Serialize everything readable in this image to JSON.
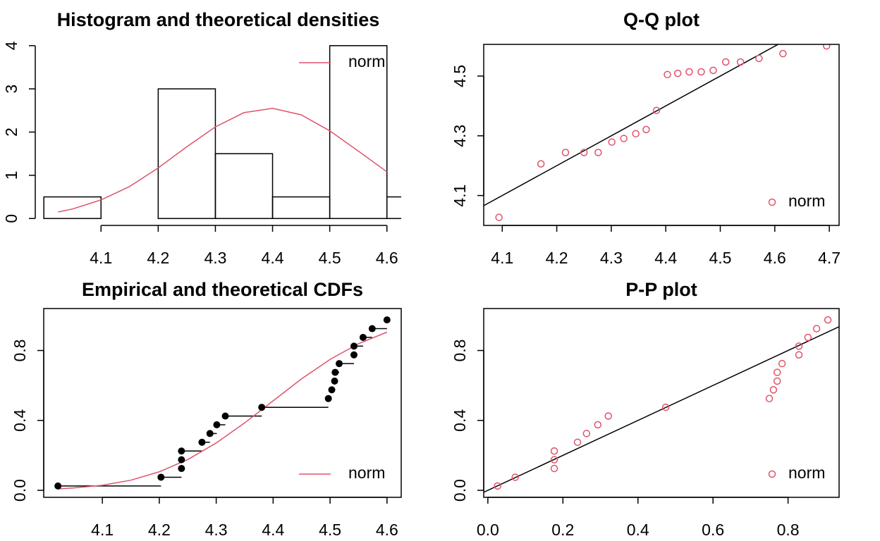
{
  "chart_data": [
    {
      "type": "histogram",
      "title": "Histogram and theoretical densities",
      "bins": [
        4.0,
        4.1,
        4.2,
        4.3,
        4.4,
        4.5,
        4.6,
        4.7
      ],
      "values": [
        0.5,
        0,
        3,
        1.5,
        0.5,
        4,
        0.5
      ],
      "color": "#000000",
      "series": [
        {
          "name": "norm",
          "color": "#DF536B",
          "x": [
            4.025,
            4.05,
            4.1,
            4.15,
            4.2,
            4.25,
            4.3,
            4.35,
            4.4,
            4.45,
            4.5,
            4.55,
            4.6
          ],
          "values": [
            0.15,
            0.22,
            0.43,
            0.74,
            1.17,
            1.66,
            2.12,
            2.45,
            2.55,
            2.4,
            2.03,
            1.56,
            1.08
          ]
        }
      ],
      "xlim": [
        3.985,
        4.625
      ],
      "ylim": [
        -0.16,
        4.16
      ],
      "xticks": [
        4.1,
        4.2,
        4.3,
        4.4,
        4.5,
        4.6
      ],
      "yticks": [
        0,
        1,
        2,
        3,
        4
      ],
      "legend": "top-right"
    },
    {
      "type": "scatter",
      "title": "Q-Q plot",
      "series": [
        {
          "name": "norm",
          "color": "#DF536B",
          "x": [
            4.094,
            4.171,
            4.216,
            4.25,
            4.276,
            4.301,
            4.323,
            4.345,
            4.364,
            4.383,
            4.403,
            4.422,
            4.443,
            4.465,
            4.487,
            4.51,
            4.537,
            4.571,
            4.615,
            4.695
          ],
          "values": [
            4.027,
            4.206,
            4.244,
            4.244,
            4.244,
            4.279,
            4.291,
            4.307,
            4.321,
            4.385,
            4.505,
            4.509,
            4.514,
            4.514,
            4.519,
            4.547,
            4.547,
            4.559,
            4.575,
            4.601
          ]
        }
      ],
      "reference_line": {
        "slope": 1,
        "intercept": 0,
        "color": "#000000"
      },
      "xlim": [
        4.066,
        4.718
      ],
      "ylim": [
        4.0,
        4.606
      ],
      "xticks": [
        4.1,
        4.2,
        4.3,
        4.4,
        4.5,
        4.6,
        4.7
      ],
      "yticks": [
        4.1,
        4.3,
        4.5
      ],
      "legend": "bottom-right"
    },
    {
      "type": "ecdf",
      "title": "Empirical and theoretical CDFs",
      "color": "#000000",
      "x": [
        4.022,
        4.203,
        4.239,
        4.239,
        4.239,
        4.275,
        4.289,
        4.301,
        4.316,
        4.38,
        4.497,
        4.503,
        4.508,
        4.509,
        4.516,
        4.542,
        4.542,
        4.558,
        4.574,
        4.6
      ],
      "values": [
        0.025,
        0.075,
        0.125,
        0.175,
        0.225,
        0.275,
        0.325,
        0.375,
        0.425,
        0.475,
        0.525,
        0.575,
        0.625,
        0.675,
        0.725,
        0.775,
        0.825,
        0.875,
        0.925,
        0.975
      ],
      "series": [
        {
          "name": "norm",
          "color": "#DF536B",
          "x": [
            4.022,
            4.05,
            4.1,
            4.15,
            4.2,
            4.25,
            4.3,
            4.35,
            4.4,
            4.45,
            4.5,
            4.55,
            4.6
          ],
          "values": [
            0.008,
            0.014,
            0.029,
            0.058,
            0.106,
            0.176,
            0.271,
            0.386,
            0.512,
            0.638,
            0.749,
            0.839,
            0.905
          ]
        }
      ],
      "xlim": [
        3.997,
        4.625
      ],
      "ylim": [
        -0.04,
        1.04
      ],
      "xticks": [
        4.1,
        4.2,
        4.3,
        4.4,
        4.5,
        4.6
      ],
      "yticks": [
        {
          "value": 0,
          "label": "0.0"
        },
        0.4,
        0.8
      ],
      "legend": "bottom-right"
    },
    {
      "type": "scatter",
      "title": "P-P plot",
      "series": [
        {
          "name": "norm",
          "color": "#DF536B",
          "x": [
            0.026,
            0.073,
            0.177,
            0.177,
            0.177,
            0.239,
            0.263,
            0.293,
            0.321,
            0.474,
            0.75,
            0.761,
            0.771,
            0.771,
            0.784,
            0.829,
            0.829,
            0.853,
            0.876,
            0.906
          ],
          "values": [
            0.025,
            0.075,
            0.125,
            0.175,
            0.225,
            0.275,
            0.325,
            0.375,
            0.425,
            0.475,
            0.525,
            0.575,
            0.625,
            0.675,
            0.725,
            0.775,
            0.825,
            0.875,
            0.925,
            0.975
          ]
        }
      ],
      "reference_line": {
        "slope": 1,
        "intercept": 0,
        "color": "#000000"
      },
      "xlim": [
        -0.011,
        0.936
      ],
      "ylim": [
        -0.04,
        1.04
      ],
      "xticks": [
        {
          "value": 0,
          "label": "0.0"
        },
        0.2,
        0.4,
        0.6,
        0.8
      ],
      "yticks": [
        {
          "value": 0,
          "label": "0.0"
        },
        0.4,
        0.8
      ],
      "legend": "bottom-right"
    }
  ]
}
